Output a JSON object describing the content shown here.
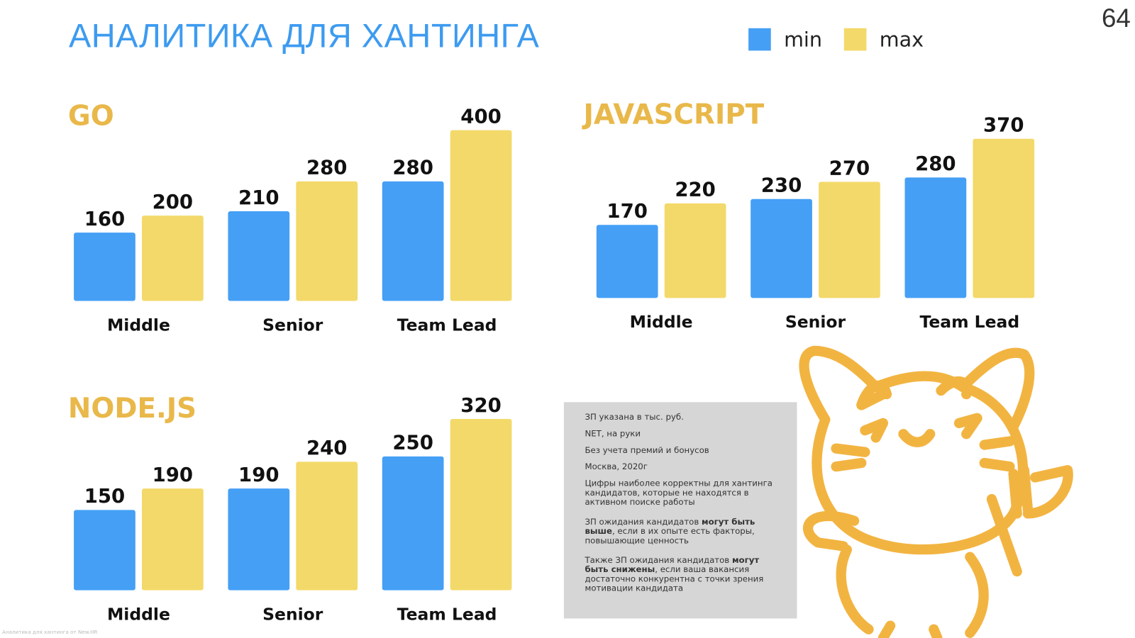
{
  "title": "АНАЛИТИКА ДЛЯ ХАНТИНГА",
  "page_number": "64",
  "legend": [
    {
      "label": "min",
      "color": "#459ff5"
    },
    {
      "label": "max",
      "color": "#f3d96a"
    }
  ],
  "chart_data": [
    {
      "type": "bar",
      "title": "GO",
      "categories": [
        "Middle",
        "Senior",
        "Team Lead"
      ],
      "series": [
        {
          "name": "min",
          "values": [
            160,
            210,
            280
          ]
        },
        {
          "name": "max",
          "values": [
            200,
            280,
            400
          ]
        }
      ]
    },
    {
      "type": "bar",
      "title": "JAVASCRIPT",
      "categories": [
        "Middle",
        "Senior",
        "Team Lead"
      ],
      "series": [
        {
          "name": "min",
          "values": [
            170,
            230,
            280
          ]
        },
        {
          "name": "max",
          "values": [
            220,
            270,
            370
          ]
        }
      ]
    },
    {
      "type": "bar",
      "title": "NODE.JS",
      "categories": [
        "Middle",
        "Senior",
        "Team Lead"
      ],
      "series": [
        {
          "name": "min",
          "values": [
            150,
            190,
            250
          ]
        },
        {
          "name": "max",
          "values": [
            190,
            240,
            320
          ]
        }
      ]
    }
  ],
  "notes": {
    "n1": "ЗП указана в тыс. руб.",
    "n2": "NET, на руки",
    "n3": "Без учета премий и бонусов",
    "n4": "Москва, 2020г",
    "n5": "Цифры наиболее корректны для хантинга кандидатов, которые не находятся в активном поиске работы",
    "n6a": "ЗП ожидания кандидатов ",
    "n6b": "могут быть выше",
    "n6c": ", если в их опыте есть факторы, повышающие ценность",
    "n7a": "Также ЗП ожидания кандидатов ",
    "n7b": "могут быть снижены",
    "n7c": ", если ваша вакансия достаточно конкурентна с точки зрения мотивации кандидата"
  },
  "footer": "Аналитика для хантинга от New.HR"
}
